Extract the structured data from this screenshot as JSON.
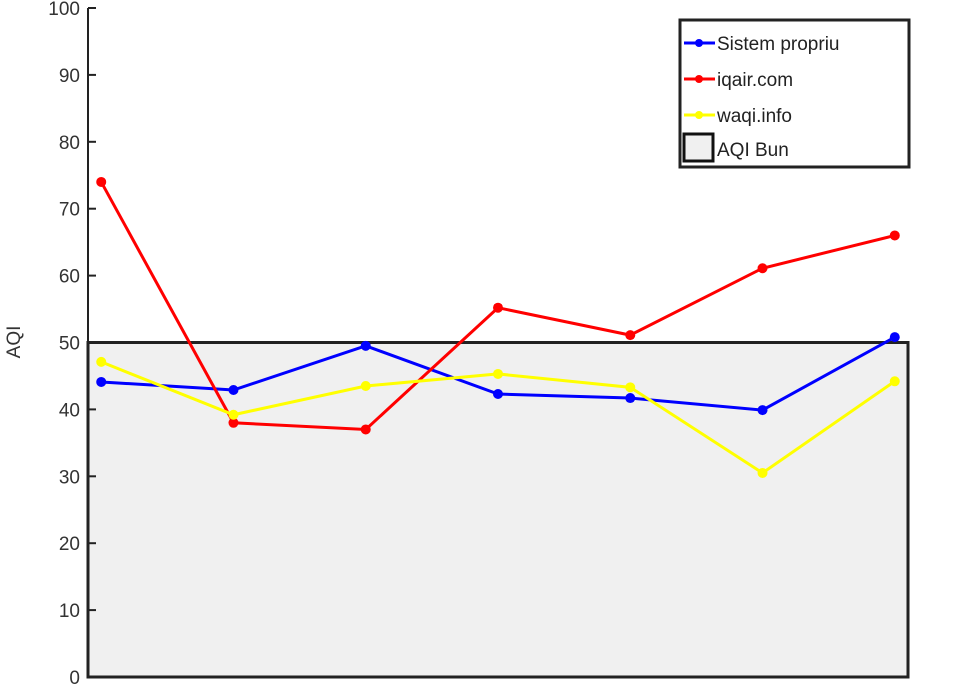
{
  "chart_data": {
    "type": "line",
    "title": "",
    "xlabel": "",
    "ylabel": "AQI",
    "ylim": [
      0,
      100
    ],
    "yticks": [
      "0",
      "10",
      "20",
      "30",
      "40",
      "50",
      "60",
      "70",
      "80",
      "90",
      "100"
    ],
    "x": [
      1,
      2,
      3,
      4,
      5,
      6,
      7
    ],
    "xlim": [
      0.9,
      7.1
    ],
    "grid": false,
    "legend_position": "top-right",
    "series": [
      {
        "name": "Sistem propriu",
        "color": "#0000ff",
        "values": [
          44.1,
          42.9,
          49.5,
          42.3,
          41.7,
          39.9,
          50.8
        ]
      },
      {
        "name": "iqair.com",
        "color": "#ff0000",
        "values": [
          74,
          38,
          37,
          55.2,
          51.1,
          61.1,
          66
        ]
      },
      {
        "name": "waqi.info",
        "color": "#ffff00",
        "values": [
          47.1,
          39.2,
          43.5,
          45.3,
          43.3,
          30.5,
          44.2
        ]
      }
    ],
    "band": {
      "name": "AQI Bun",
      "from": 0,
      "to": 50,
      "fill": "#f0f0f0",
      "edge": "#222222"
    }
  }
}
